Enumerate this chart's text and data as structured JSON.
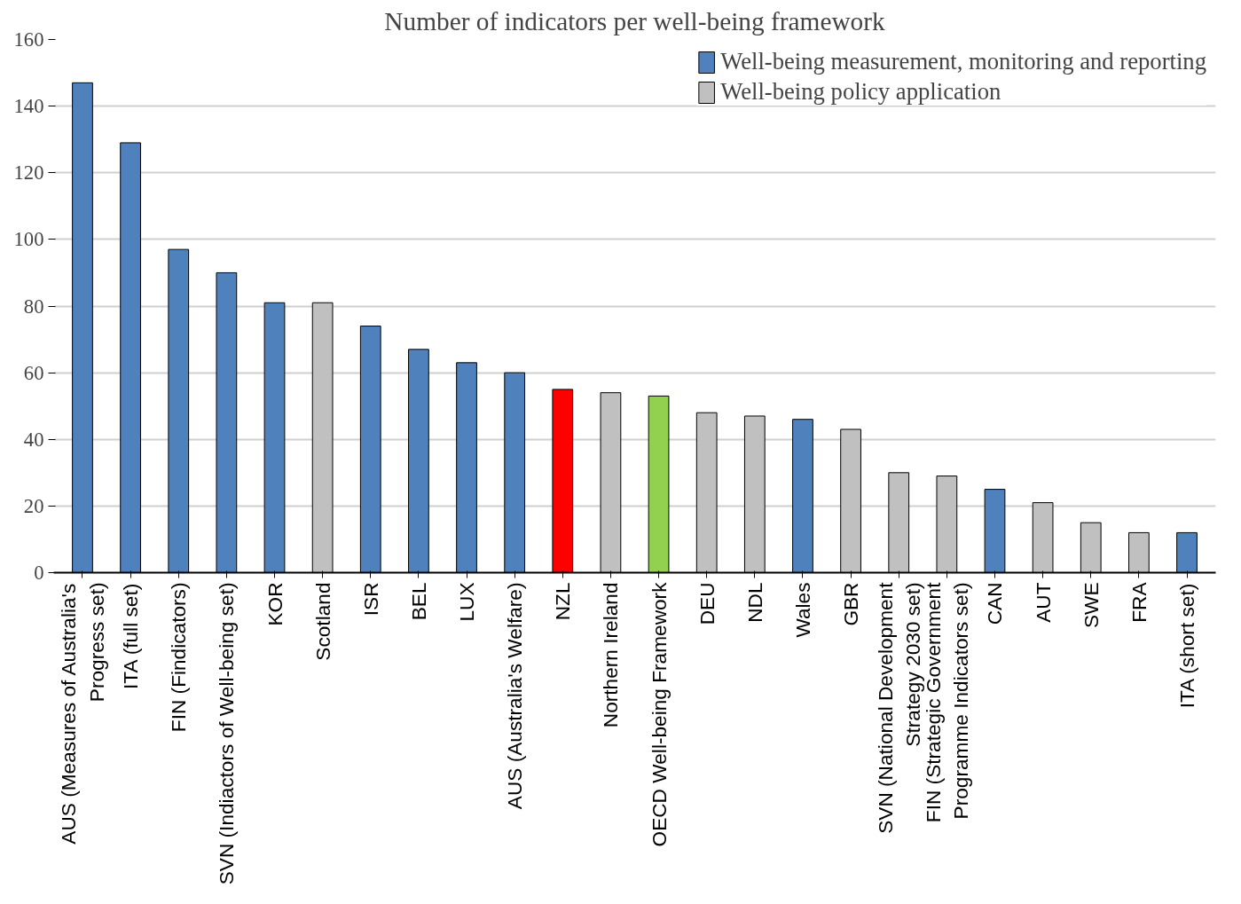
{
  "chart_data": {
    "type": "bar",
    "title": "Number of indicators per well-being framework",
    "categories": [
      "AUS (Measures of Australia's Progress set)",
      "ITA (full set)",
      "FIN (Findicators)",
      "SVN (Indiactors of Well-being set)",
      "KOR",
      "Scotland",
      "ISR",
      "BEL",
      "LUX",
      "AUS (Australia's Welfare)",
      "NZL",
      "Northern Ireland",
      "OECD Well-being Framework",
      "DEU",
      "NDL",
      "Wales",
      "GBR",
      "SVN (National Development Strategy 2030 set)",
      "FIN (Strategic Government Programme Indicators set)",
      "CAN",
      "AUT",
      "SWE",
      "FRA",
      "ITA (short set)"
    ],
    "stacked": true,
    "series": [
      {
        "name": "Well-being measurement, monitoring and reporting",
        "color": "#4f81bd",
        "values": [
          147,
          129,
          97,
          90,
          81,
          null,
          74,
          67,
          63,
          60,
          null,
          null,
          null,
          null,
          null,
          46,
          null,
          null,
          null,
          25,
          null,
          null,
          null,
          12
        ]
      },
      {
        "name": "Well-being policy application",
        "color": "#c0c0c0",
        "values": [
          null,
          null,
          null,
          null,
          null,
          81,
          null,
          null,
          null,
          null,
          null,
          54,
          null,
          48,
          47,
          null,
          43,
          30,
          29,
          null,
          21,
          15,
          12,
          null
        ]
      },
      {
        "colors": [
          null,
          null,
          null,
          null,
          null,
          null,
          null,
          null,
          null,
          null,
          "#ff0000",
          null,
          "#92d050",
          null,
          null,
          null,
          null,
          null,
          null,
          null,
          null,
          null,
          null,
          null
        ],
        "values": [
          null,
          null,
          null,
          null,
          null,
          null,
          null,
          null,
          null,
          null,
          55,
          null,
          53,
          null,
          null,
          null,
          null,
          null,
          null,
          null,
          null,
          null,
          null,
          null
        ]
      }
    ],
    "ylim": [
      0,
      160
    ],
    "yticks": [
      0,
      20,
      40,
      60,
      80,
      100,
      120,
      140,
      160
    ],
    "grid": "y",
    "legend": "top right"
  }
}
